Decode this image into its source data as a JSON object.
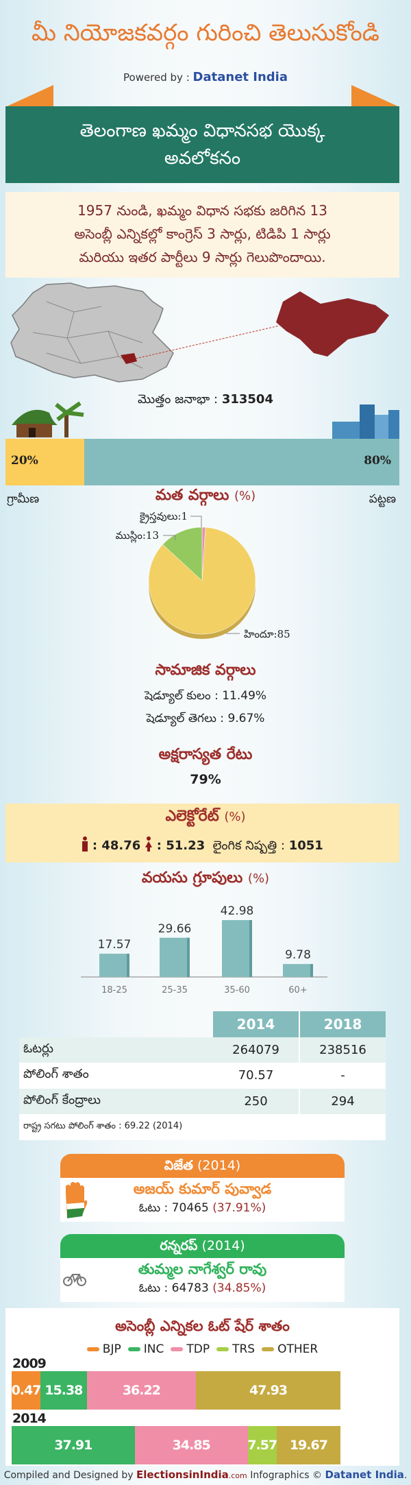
{
  "header": {
    "title": "మీ నియోజకవర్గం గురించి తెలుసుకోండి",
    "powered_prefix": "Powered by :",
    "powered_brand": "Datanet India"
  },
  "banner": {
    "line1": "తెలంగాణ ఖమ్మం విధానసభ యొక్క",
    "line2": "అవలోకనం"
  },
  "intro": {
    "line1": "1957 నుండి, ఖమ్మం విధాన సభకు జరిగిన 13",
    "line2": "అసెంబ్లీ ఎన్నికల్లో కాంగ్రెస్ 3 సార్లు, టిడిపి 1 సార్లు",
    "line3": "మరియు ఇతర పార్టీలు 9 సార్లు గెలుపొందాయి."
  },
  "population": {
    "label": "మొత్తం జనాభా :",
    "value": "313504",
    "rural_pct": 20,
    "urban_pct": 80,
    "rural_text": "20%",
    "urban_text": "80%",
    "rural_label": "గ్రామీణ",
    "urban_label": "పట్టణ",
    "colors": {
      "rural": "#fbcd5a",
      "urban": "#84bcbd"
    }
  },
  "religion": {
    "title": "మత వర్గాలు",
    "unit": "(%)",
    "chart_data": {
      "type": "pie",
      "slices": [
        {
          "label": "హిందూ",
          "value": 85,
          "color": "#f2d064"
        },
        {
          "label": "ముస్లిం",
          "value": 13,
          "color": "#93c95e"
        },
        {
          "label": "క్రైస్తవులు",
          "value": 1,
          "color": "#e58fb5"
        }
      ]
    },
    "labels": {
      "hindu": "హిందూ:85",
      "muslim": "ముస్లిం:13",
      "christian": "క్రైస్తవులు:1"
    }
  },
  "social": {
    "title": "సామాజిక వర్గాలు",
    "sc": "షెడ్యూల్ కులం :   11.49%",
    "st": "షెడ్యూల్ తెగలు :   9.67%"
  },
  "literacy": {
    "title": "అక్షరాస్యత రేటు",
    "value": "79%"
  },
  "electorate": {
    "title": "ఎలెక్టోరేట్",
    "unit": "(%)",
    "male": ": 48.76",
    "female": ": 51.23",
    "ratio_label": "లైంగిక నిష్పత్తి :",
    "ratio": "1051"
  },
  "age": {
    "title": "వయసు గ్రూపులు",
    "unit": "(%)",
    "chart_data": {
      "type": "bar",
      "categories": [
        "18-25",
        "25-35",
        "35-60",
        "60+"
      ],
      "values": [
        17.57,
        29.66,
        42.98,
        9.78
      ],
      "labels": [
        "17.57",
        "29.66",
        "42.98",
        "9.78"
      ],
      "color": "#84bcbd"
    }
  },
  "table": {
    "headers": [
      "2014",
      "2018"
    ],
    "rows": [
      {
        "label": "ఓటర్లు",
        "v": [
          "264079",
          "238516"
        ]
      },
      {
        "label": "పోలింగ్ శాతం",
        "v": [
          "70.57",
          "-"
        ]
      },
      {
        "label": "పోలింగ్ కేంద్రాలు",
        "v": [
          "250",
          "294"
        ]
      }
    ],
    "note": "రాష్ట్ర సగటు పోలింగ్ శాతం : 69.22 (2014)"
  },
  "winner": {
    "title": "విజేత",
    "year": "(2014)",
    "name": "అజయ్ కుమార్ పువ్వాడ",
    "votes": "ఓటు : 70465",
    "pct": "(37.91%)",
    "symbol": "hand-icon",
    "color": "#f08a33"
  },
  "runnerup": {
    "title": "రన్నరప్",
    "year": "(2014)",
    "name": "తుమ్మల నాగేశ్వర్ రావు",
    "votes": "ఓటు : 64783",
    "pct": "(34.85%)",
    "symbol": "bicycle-icon",
    "color": "#2fb15a"
  },
  "voteshare": {
    "title": "అసెంబ్లీ ఎన్నికల ఓట్ షేర్ శాతం",
    "legend": [
      {
        "name": "BJP",
        "color": "#f28b30"
      },
      {
        "name": "INC",
        "color": "#3bb463"
      },
      {
        "name": "TDP",
        "color": "#f08ea8"
      },
      {
        "name": "TRS",
        "color": "#a6cf45"
      },
      {
        "name": "OTHER",
        "color": "#c5aa42"
      }
    ],
    "chart_data": {
      "type": "bar",
      "stacked": true,
      "orientation": "horizontal",
      "categories": [
        "2009",
        "2014"
      ],
      "series": [
        {
          "name": "BJP",
          "values": [
            0.47,
            null
          ]
        },
        {
          "name": "INC",
          "values": [
            15.38,
            37.91
          ]
        },
        {
          "name": "TDP",
          "values": [
            36.22,
            34.85
          ]
        },
        {
          "name": "TRS",
          "values": [
            null,
            7.57
          ]
        },
        {
          "name": "OTHER",
          "values": [
            47.93,
            19.67
          ]
        }
      ]
    }
  },
  "footer": {
    "prefix": "Compiled and Designed by",
    "site": "ElectionsinIndia",
    "site_tld": ".com",
    "mid": "Infographics ©",
    "brand": "Datanet India",
    "end": "."
  }
}
